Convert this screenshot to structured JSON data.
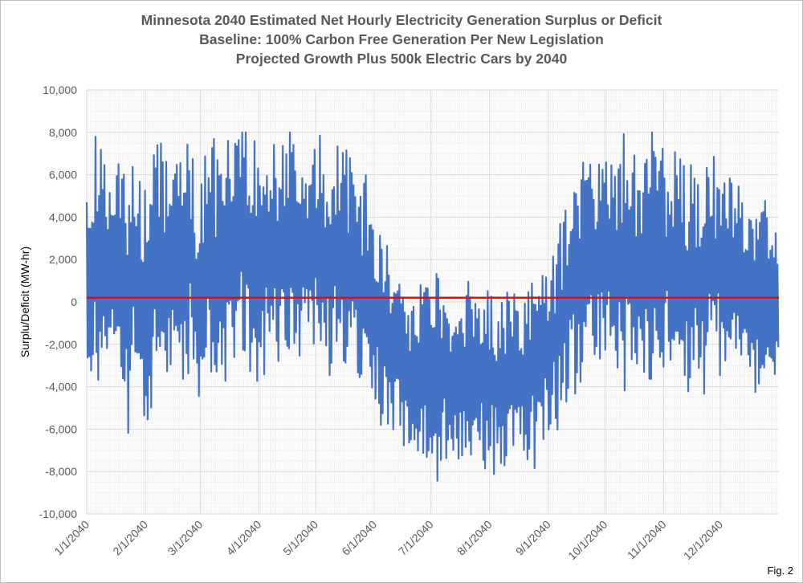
{
  "chart_data": {
    "type": "line",
    "title": [
      "Minnesota 2040 Estimated Net Hourly Electricity Generation Surplus or Deficit",
      "Baseline: 100% Carbon Free Generation Per New Legislation",
      "Projected Growth Plus 500k Electric Cars by 2040"
    ],
    "xlabel": "",
    "ylabel": "Surplu/Deficit (MW-hr)",
    "ylim": [
      -10000,
      10000
    ],
    "y_ticks": [
      -10000,
      -8000,
      -6000,
      -4000,
      -2000,
      0,
      2000,
      4000,
      6000,
      8000,
      10000
    ],
    "y_tick_labels": [
      "-10,000",
      "-8,000",
      "-6,000",
      "-4,000",
      "-2,000",
      "0",
      "2,000",
      "4,000",
      "6,000",
      "8,000",
      "10,000"
    ],
    "x_tick_labels": [
      "1/1/2040",
      "2/1/2040",
      "3/1/2040",
      "4/1/2040",
      "5/1/2040",
      "6/1/2040",
      "7/1/2040",
      "8/1/2040",
      "9/1/2040",
      "10/1/2040",
      "11/1/2040",
      "12/1/2040"
    ],
    "grid": true,
    "series": [
      {
        "name": "",
        "color": "#4472c4",
        "x": [
          "1/1/2040",
          "1/5/2040",
          "1/9/2040",
          "1/13/2040",
          "1/17/2040",
          "1/21/2040",
          "1/25/2040",
          "1/29/2040",
          "2/2/2040",
          "2/6/2040",
          "2/10/2040",
          "2/14/2040",
          "2/18/2040",
          "2/22/2040",
          "2/26/2040",
          "3/1/2040",
          "3/5/2040",
          "3/9/2040",
          "3/13/2040",
          "3/17/2040",
          "3/21/2040",
          "3/25/2040",
          "3/29/2040",
          "4/2/2040",
          "4/6/2040",
          "4/10/2040",
          "4/14/2040",
          "4/18/2040",
          "4/22/2040",
          "4/26/2040",
          "4/30/2040",
          "5/4/2040",
          "5/8/2040",
          "5/12/2040",
          "5/16/2040",
          "5/20/2040",
          "5/24/2040",
          "5/28/2040",
          "6/1/2040",
          "6/5/2040",
          "6/9/2040",
          "6/13/2040",
          "6/17/2040",
          "6/21/2040",
          "6/25/2040",
          "6/29/2040",
          "7/3/2040",
          "7/7/2040",
          "7/11/2040",
          "7/15/2040",
          "7/19/2040",
          "7/23/2040",
          "7/27/2040",
          "7/31/2040",
          "8/4/2040",
          "8/8/2040",
          "8/12/2040",
          "8/16/2040",
          "8/20/2040",
          "8/24/2040",
          "8/28/2040",
          "9/1/2040",
          "9/5/2040",
          "9/9/2040",
          "9/13/2040",
          "9/17/2040",
          "9/21/2040",
          "9/25/2040",
          "9/29/2040",
          "10/3/2040",
          "10/7/2040",
          "10/11/2040",
          "10/15/2040",
          "10/19/2040",
          "10/23/2040",
          "10/27/2040",
          "10/31/2040",
          "11/4/2040",
          "11/8/2040",
          "11/12/2040",
          "11/16/2040",
          "11/20/2040",
          "11/24/2040",
          "11/28/2040",
          "12/2/2040",
          "12/6/2040",
          "12/10/2040",
          "12/14/2040",
          "12/18/2040",
          "12/22/2040",
          "12/26/2040",
          "12/30/2040"
        ],
        "y": [
          1200,
          2300,
          1700,
          1800,
          2400,
          -700,
          900,
          600,
          200,
          1700,
          2100,
          1600,
          2100,
          2800,
          1600,
          -400,
          2300,
          1900,
          2200,
          1900,
          1900,
          3100,
          2200,
          1200,
          2100,
          2000,
          2800,
          3200,
          2600,
          2700,
          2700,
          3100,
          2200,
          2700,
          1700,
          2500,
          900,
          1300,
          -400,
          -1200,
          -2100,
          -2600,
          -2800,
          -3200,
          -3400,
          -3100,
          -3300,
          -3600,
          -3900,
          -3800,
          -3600,
          -3700,
          -3300,
          -3500,
          -3800,
          -3400,
          -3100,
          -3500,
          -3700,
          -3200,
          -2800,
          -2400,
          -1500,
          -600,
          400,
          700,
          1600,
          2100,
          2100,
          1800,
          1600,
          1900,
          2000,
          1300,
          1600,
          2300,
          2500,
          1800,
          1000,
          1300,
          1100,
          600,
          1300,
          2100,
          1500,
          2000,
          1400,
          300,
          -200,
          -100,
          100,
          -500
        ],
        "range": [
          5200,
          5800,
          6000,
          6200,
          5900,
          6100,
          5800,
          6100,
          6000,
          6200,
          5900,
          6000,
          6100,
          5800,
          6000,
          5900,
          6200,
          5800,
          6000,
          6000,
          6000,
          5900,
          6100,
          5900,
          5600,
          5800,
          5200,
          5300,
          5400,
          5400,
          5500,
          5200,
          5500,
          5200,
          5600,
          5100,
          5200,
          5000,
          4700,
          4700,
          4300,
          4400,
          4200,
          4600,
          4200,
          4400,
          4500,
          4400,
          4200,
          4300,
          4300,
          4100,
          4300,
          4400,
          4300,
          4300,
          4200,
          4100,
          4100,
          4500,
          4300,
          4300,
          4700,
          4800,
          5100,
          5300,
          5000,
          5100,
          5300,
          5500,
          5700,
          5800,
          5600,
          5600,
          5700,
          5600,
          5400,
          5500,
          5500,
          5400,
          5700,
          5600,
          5200,
          5100,
          5000,
          4700,
          4800,
          4700,
          4800,
          4700,
          4600,
          4500
        ]
      },
      {
        "name": "",
        "color": "#ff0000",
        "x": [
          "1/1/2040",
          "12/31/2040"
        ],
        "y": [
          200,
          200
        ]
      }
    ]
  },
  "footer": {
    "fig_label": "Fig. 2"
  }
}
